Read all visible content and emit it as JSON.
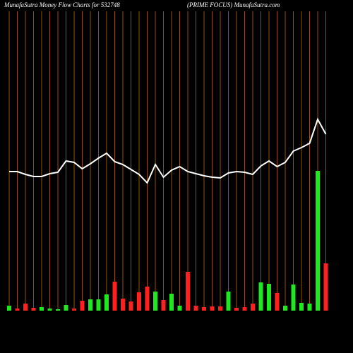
{
  "chart_data": {
    "type": "bar-line",
    "title": "MunafaSutra  Money  Flow  Charts for 532748",
    "subtitle": "(PRIME FOCUS) MunafaSutra.com",
    "categories": [
      null,
      null,
      null,
      null,
      null,
      null,
      null,
      null,
      null,
      null,
      null,
      null,
      null,
      null,
      null,
      null,
      null,
      null,
      null,
      null,
      null,
      null,
      null,
      null,
      null,
      null,
      null,
      null,
      null,
      null,
      null,
      null,
      null,
      null,
      null,
      null,
      null,
      null,
      null,
      null
    ],
    "ylim": [
      0,
      440
    ],
    "grid_color": "#b8650f",
    "bars": {
      "values": [
        7,
        3,
        10,
        4,
        5,
        3,
        2,
        8,
        3,
        14,
        16,
        16,
        23,
        41,
        17,
        13,
        26,
        34,
        27,
        15,
        24,
        7,
        55,
        7,
        5,
        6,
        6,
        27,
        4,
        5,
        10,
        40,
        38,
        25,
        7,
        37,
        11,
        10,
        198,
        67
      ],
      "colors": [
        "#1ee81e",
        "#ff2020",
        "#ff2020",
        "#ff2020",
        "#1ee81e",
        "#1ee81e",
        "#1ee81e",
        "#1ee81e",
        "#ff2020",
        "#ff2020",
        "#1ee81e",
        "#1ee81e",
        "#1ee81e",
        "#ff2020",
        "#ff2020",
        "#ff2020",
        "#ff2020",
        "#ff2020",
        "#1ee81e",
        "#ff2020",
        "#1ee81e",
        "#1ee81e",
        "#ff2020",
        "#ff2020",
        "#ff2020",
        "#ff2020",
        "#ff2020",
        "#1ee81e",
        "#ff2020",
        "#ff2020",
        "#ff2020",
        "#1ee81e",
        "#1ee81e",
        "#ff2020",
        "#1ee81e",
        "#1ee81e",
        "#1ee81e",
        "#1ee81e",
        "#1ee81e",
        "#ff2020"
      ]
    },
    "line": {
      "color": "#ffffff",
      "values": [
        197,
        197,
        193,
        190,
        190,
        194,
        196,
        212,
        210,
        201,
        208,
        216,
        223,
        211,
        207,
        200,
        193,
        181,
        207,
        189,
        199,
        204,
        197,
        194,
        191,
        189,
        188,
        195,
        197,
        196,
        193,
        205,
        212,
        204,
        210,
        226,
        231,
        237,
        271,
        250
      ]
    }
  }
}
